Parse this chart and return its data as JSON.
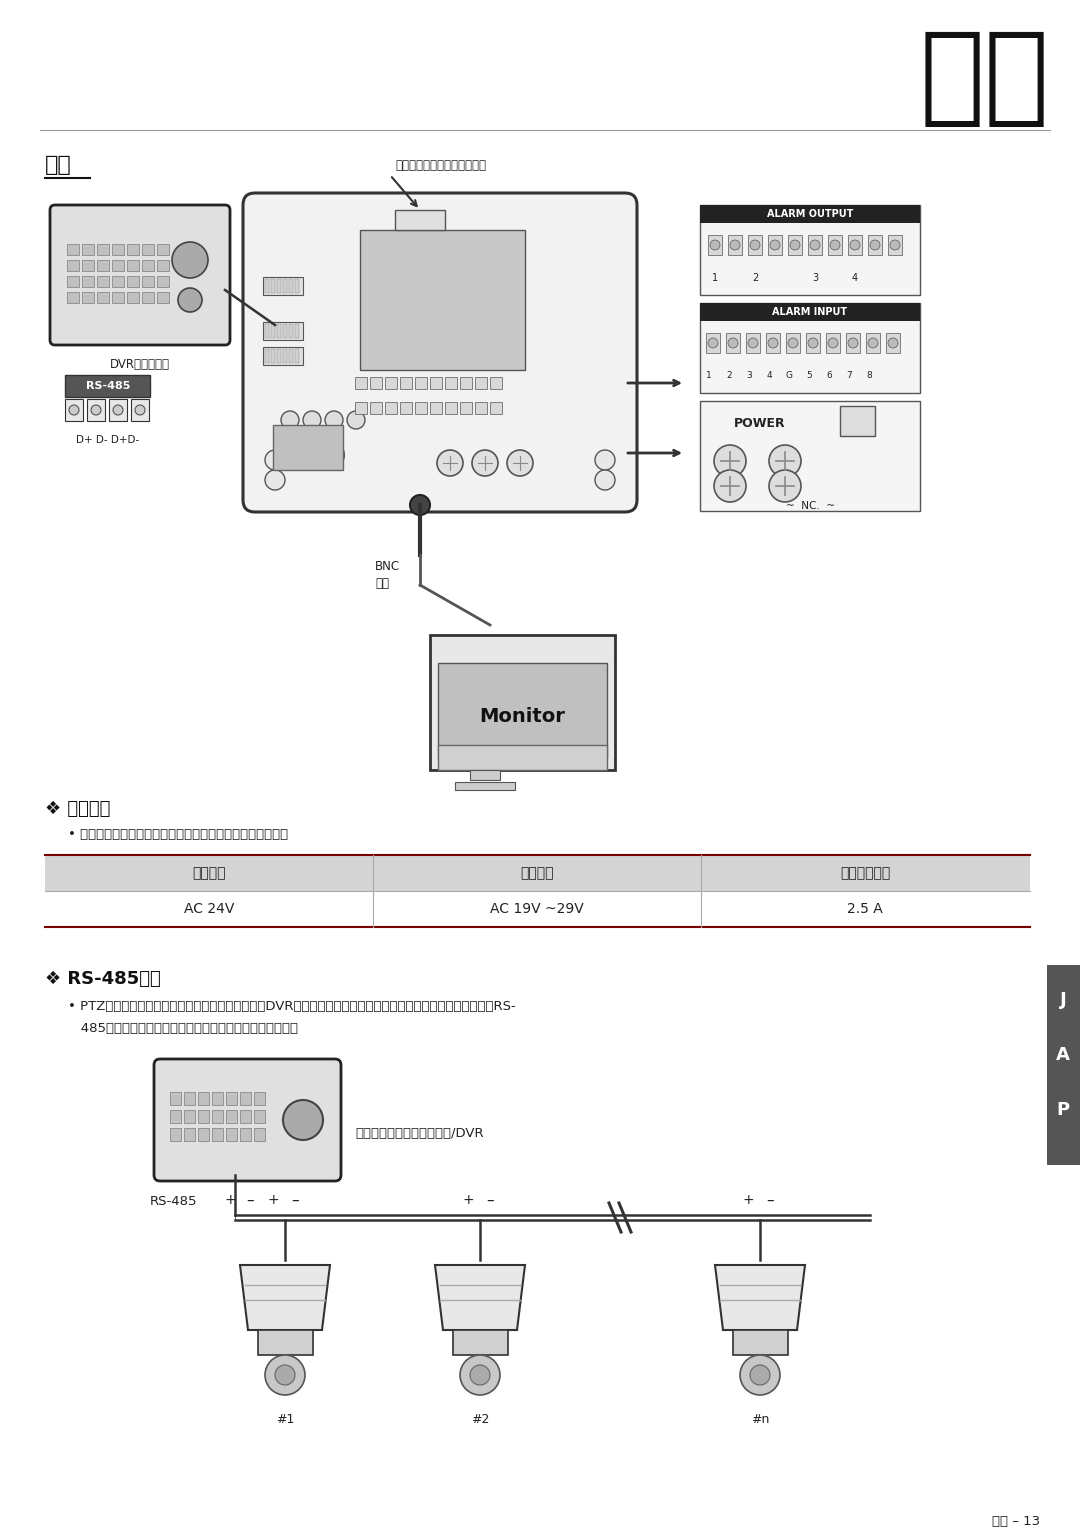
{
  "page_bg": "#ffffff",
  "title_kanji": "設置",
  "section1_title": "配線",
  "section2_title": "❖ 電源接続",
  "section2_bullet": "• 注意して定格出力の電圧と電流容量を確認してください。",
  "table_headers": [
    "定格出力",
    "入力電圧",
    "消費電力範囲"
  ],
  "table_row": [
    "AC 24V",
    "AC 19V ~29V",
    "2.5 A"
  ],
  "table_header_bg": "#d4d4d4",
  "table_border_color": "#7a0000",
  "table_divider_color": "#aaaaaa",
  "section3_title": "❖ RS-485通信",
  "section3_bullet1": "• PTZ制御については、このラインをキーボードとDVRに接続します。複数のカメラを同時に制御する場合は、RS-",
  "section3_bullet2": "   485通信ラインを下図に示すように、並列に接続します。",
  "label_dome_camera": "ドーム・カメラへのコネクタ",
  "label_dvr_keyboard": "DVRキーボード",
  "label_rs485_box": "RS-485",
  "label_dp_dm": "D+ D- D+D-",
  "label_bnc_line1": "BNC",
  "label_bnc_line2": "映像",
  "label_monitor": "Monitor",
  "label_alarm_output": "ALARM OUTPUT",
  "label_alarm_input": "ALARM INPUT",
  "label_power": "POWER",
  "label_nc": "NC.",
  "label_keyboard_dvr": "キーボード・コントローラ/DVR",
  "label_rs485_diagram": "RS-485",
  "labels_cameras": [
    "#1",
    "#2",
    "#n"
  ],
  "side_tab_text": [
    "J",
    "A",
    "P"
  ],
  "side_tab_bg": "#555555",
  "side_tab_text_color": "#ffffff",
  "footer_text": "日本 – 13",
  "line_color": "#999999",
  "text_color": "#222222",
  "header_color": "#111111",
  "diagram_line_color": "#333333"
}
